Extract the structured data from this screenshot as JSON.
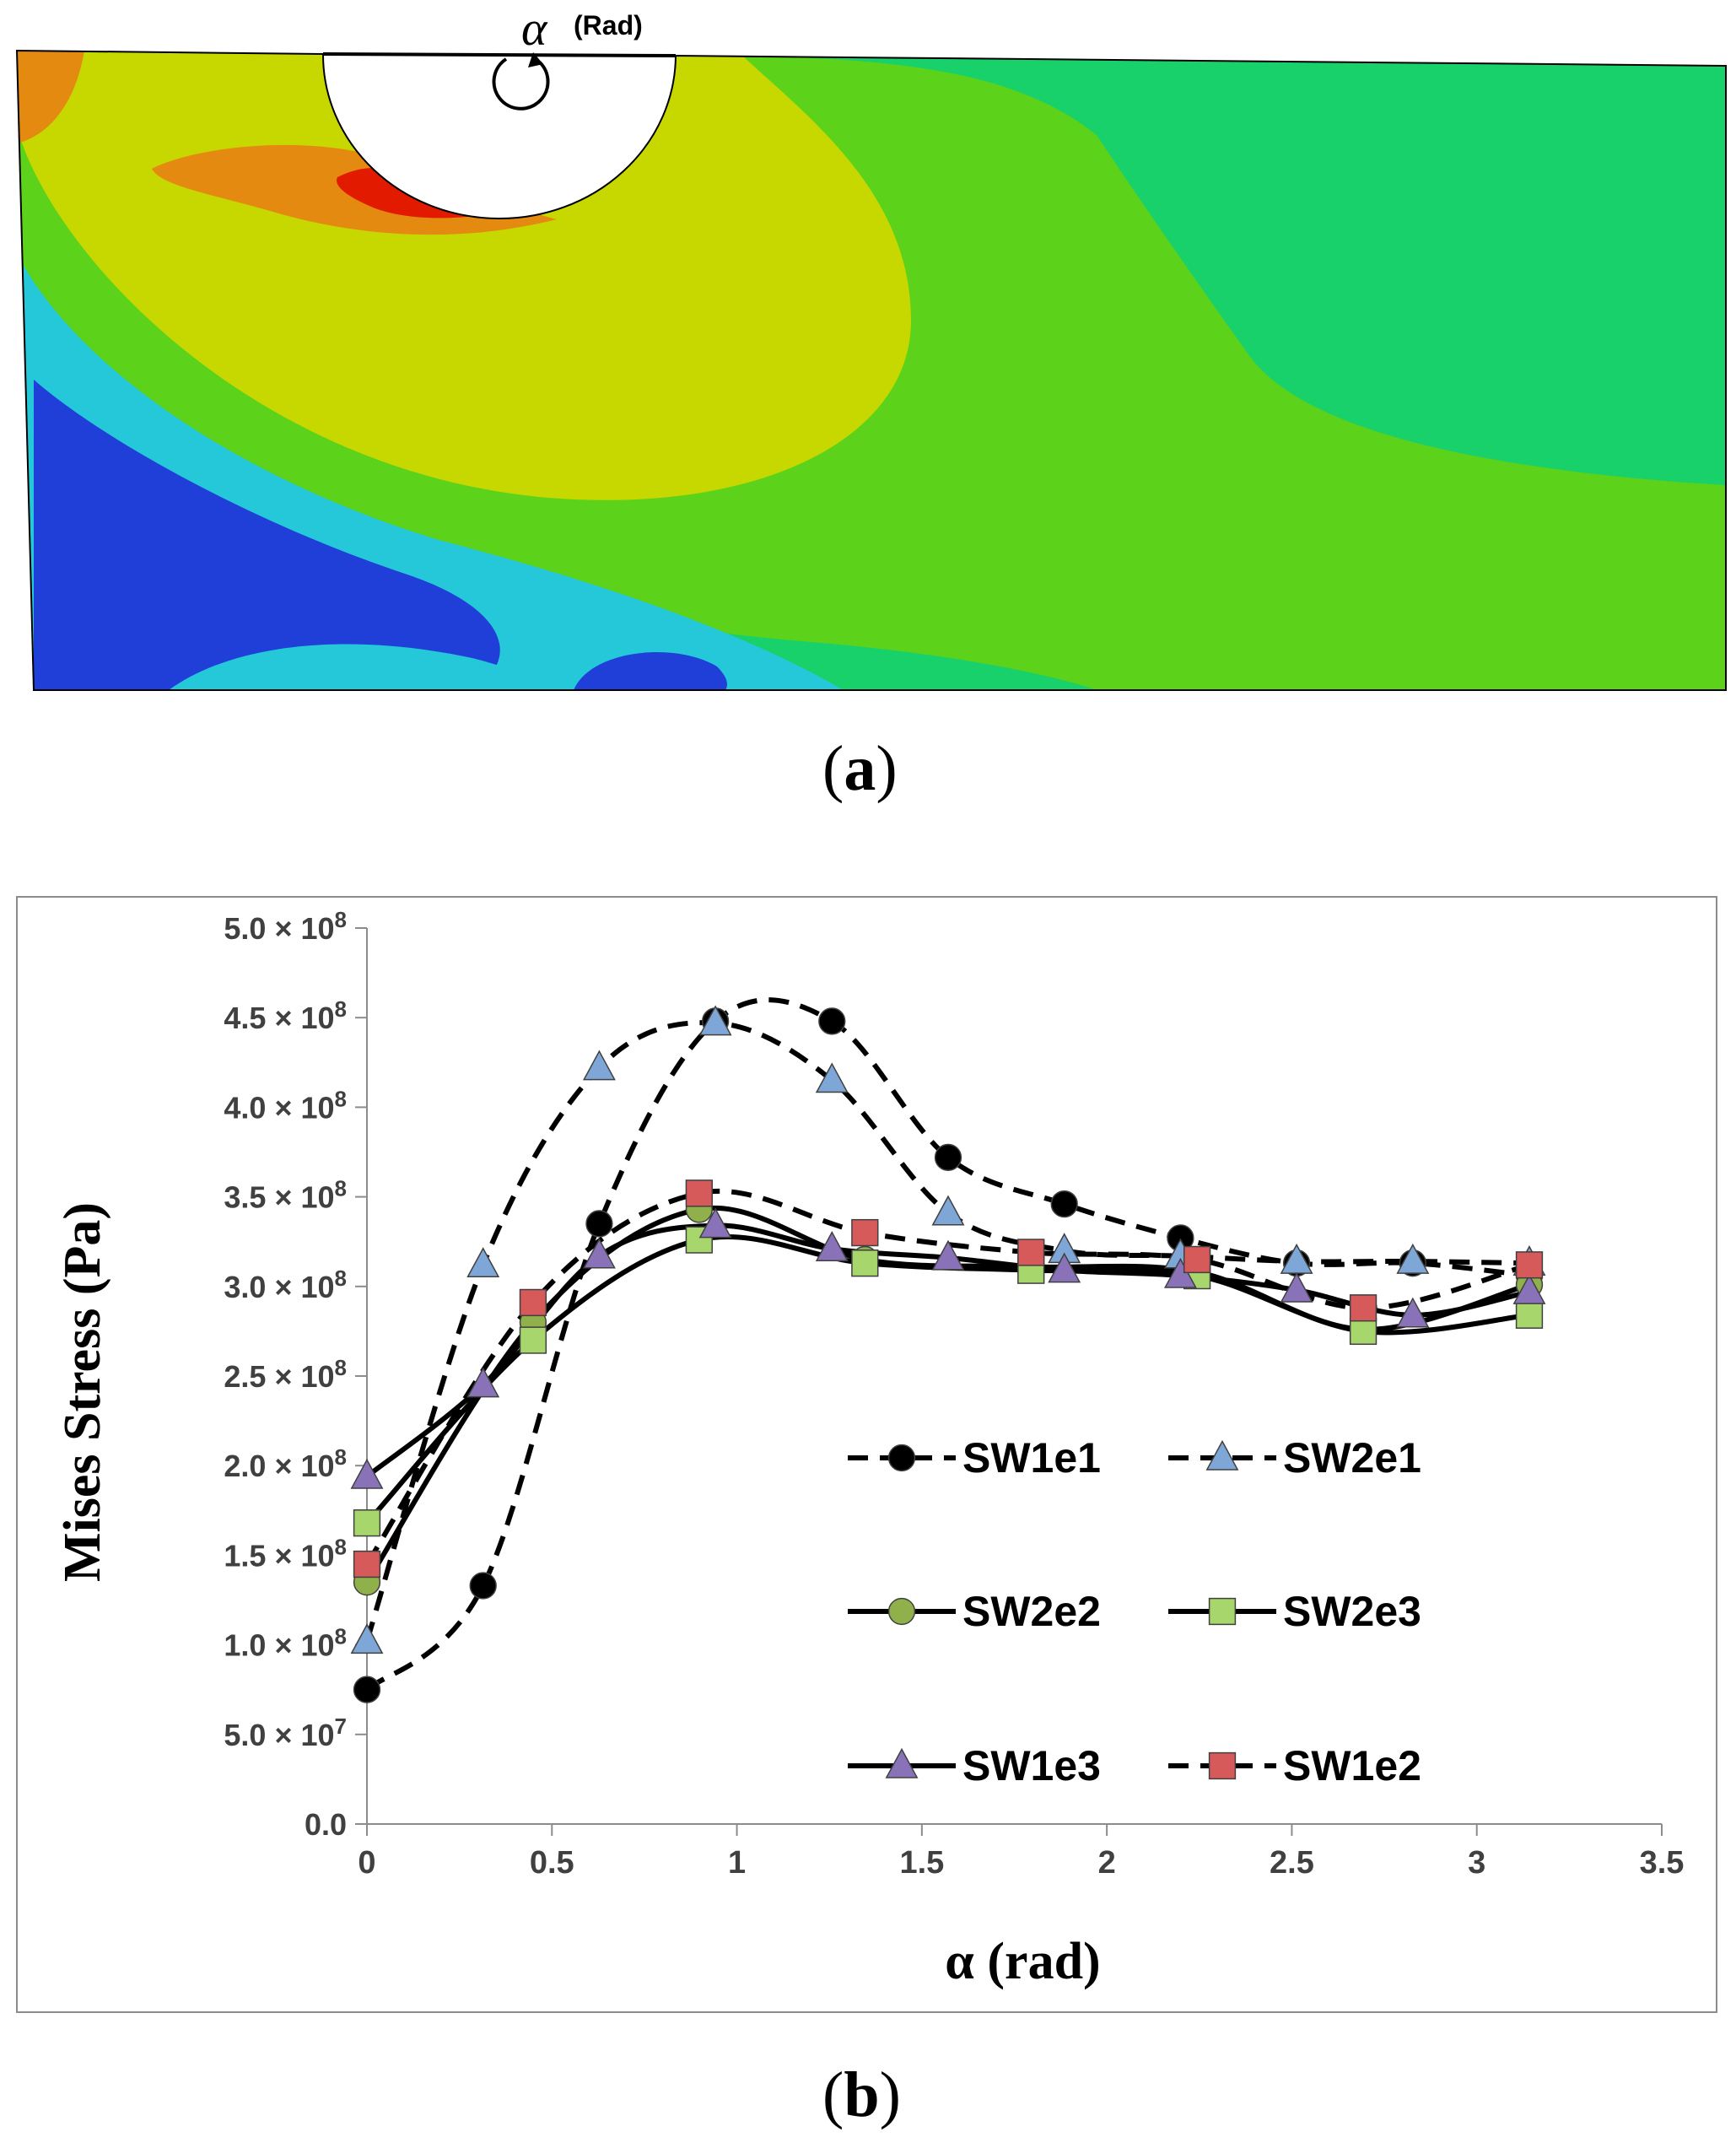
{
  "panel_a": {
    "label_letter": "a",
    "annotation_symbol": "α",
    "annotation_unit": "(Rad)"
  },
  "panel_b": {
    "label_letter": "b"
  },
  "colors": {
    "fea_blue": "#1f3fd8",
    "fea_cyan": "#25c8d8",
    "fea_green": "#19d16a",
    "fea_lime": "#5cd21a",
    "fea_yellow": "#c7d800",
    "fea_orange": "#e58a10",
    "fea_red": "#e11a00",
    "marker_circle": "#000000",
    "marker_triangle_blue": "#7ea6d6",
    "marker_circle_green": "#8fb04a",
    "marker_square_green": "#a6d66c",
    "marker_triangle_purple": "#8a72b8",
    "marker_square_red": "#d65a5a"
  },
  "chart_data": {
    "type": "line",
    "xlabel": "α (rad)",
    "ylabel": "Mises Stress (Pa)",
    "xlim": [
      0,
      3.5
    ],
    "ylim": [
      0,
      500000000
    ],
    "x_ticks": [
      "0",
      "0.5",
      "1",
      "1.5",
      "2",
      "2.5",
      "3",
      "3.5"
    ],
    "x_tick_values": [
      0,
      0.5,
      1,
      1.5,
      2,
      2.5,
      3,
      3.5
    ],
    "y_ticks": [
      {
        "value": 0,
        "mantissa": "0.0",
        "exp": ""
      },
      {
        "value": 50000000,
        "mantissa": "5.0",
        "exp": "7"
      },
      {
        "value": 100000000,
        "mantissa": "1.0",
        "exp": "8"
      },
      {
        "value": 150000000,
        "mantissa": "1.5",
        "exp": "8"
      },
      {
        "value": 200000000,
        "mantissa": "2.0",
        "exp": "8"
      },
      {
        "value": 250000000,
        "mantissa": "2.5",
        "exp": "8"
      },
      {
        "value": 300000000,
        "mantissa": "3.0",
        "exp": "8"
      },
      {
        "value": 350000000,
        "mantissa": "3.5",
        "exp": "8"
      },
      {
        "value": 400000000,
        "mantissa": "4.0",
        "exp": "8"
      },
      {
        "value": 450000000,
        "mantissa": "4.5",
        "exp": "8"
      },
      {
        "value": 500000000,
        "mantissa": "5.0",
        "exp": "8"
      }
    ],
    "y_tick_times": "×",
    "y_tick_base": "10",
    "grid": false,
    "legend_position": "center-right",
    "series": [
      {
        "name": "SW1e1",
        "dashed": true,
        "marker": "circle",
        "color": "#000000",
        "x": [
          0,
          0.314,
          0.628,
          0.942,
          1.257,
          1.571,
          1.885,
          2.199,
          2.513,
          2.827,
          3.142
        ],
        "y": [
          75000000,
          133000000,
          335000000,
          448000000,
          448000000,
          372000000,
          346000000,
          327000000,
          313000000,
          313000000,
          306000000
        ]
      },
      {
        "name": "SW2e1",
        "dashed": true,
        "marker": "triangle",
        "color": "#7ea6d6",
        "x": [
          0,
          0.314,
          0.628,
          0.942,
          1.257,
          1.571,
          1.885,
          2.199,
          2.513,
          2.827,
          3.142
        ],
        "y": [
          102000000,
          312000000,
          422000000,
          447000000,
          415000000,
          341000000,
          320000000,
          317000000,
          314000000,
          314000000,
          313000000
        ]
      },
      {
        "name": "SW2e2",
        "dashed": false,
        "marker": "circle",
        "color": "#8fb04a",
        "x": [
          0,
          0.449,
          0.898,
          1.346,
          1.795,
          2.244,
          2.693,
          3.142
        ],
        "y": [
          135000000,
          280000000,
          343000000,
          315000000,
          311000000,
          308000000,
          276000000,
          301000000
        ]
      },
      {
        "name": "SW2e3",
        "dashed": false,
        "marker": "square",
        "color": "#a6d66c",
        "x": [
          0,
          0.449,
          0.898,
          1.346,
          1.795,
          2.244,
          2.693,
          3.142
        ],
        "y": [
          168000000,
          270000000,
          326000000,
          313000000,
          309000000,
          306000000,
          275000000,
          284000000
        ]
      },
      {
        "name": "SW1e3",
        "dashed": false,
        "marker": "triangle",
        "color": "#8a72b8",
        "x": [
          0,
          0.314,
          0.628,
          0.942,
          1.257,
          1.571,
          1.885,
          2.199,
          2.513,
          2.827,
          3.142
        ],
        "y": [
          194000000,
          245000000,
          317000000,
          334000000,
          321000000,
          316000000,
          309000000,
          306000000,
          298000000,
          284000000,
          297000000
        ]
      },
      {
        "name": "SW1e2",
        "dashed": true,
        "marker": "square",
        "color": "#d65a5a",
        "x": [
          0,
          0.449,
          0.898,
          1.346,
          1.795,
          2.244,
          2.693,
          3.142
        ],
        "y": [
          145000000,
          291000000,
          352000000,
          330000000,
          319000000,
          315000000,
          288000000,
          312000000
        ]
      }
    ]
  }
}
